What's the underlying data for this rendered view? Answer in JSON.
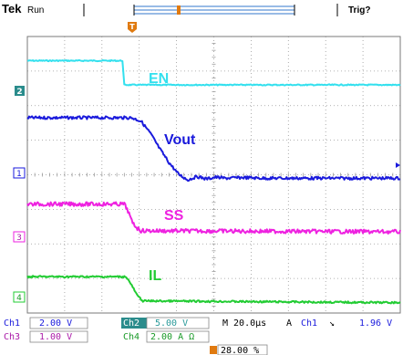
{
  "header": {
    "brand": "Tek",
    "status": "Run",
    "trigger_status": "Trig?"
  },
  "waveforms": {
    "colors": {
      "ch1": "#1a1adc",
      "ch2": "#33e0ee",
      "ch3": "#ee22e0",
      "ch4": "#22cc33",
      "marker": "#e07a10",
      "grid": "#9a9a9a",
      "frame": "#7a7a7a"
    }
  },
  "labels": {
    "en": "EN",
    "vout": "Vout",
    "ss": "SS",
    "il": "IL"
  },
  "channel_markers": {
    "ch1": "1",
    "ch2": "2",
    "ch3": "3",
    "ch4": "4",
    "trigger_marker": "T"
  },
  "readout": {
    "ch1_label": "Ch1",
    "ch1_scale": "2.00 V",
    "ch2_label": "Ch2",
    "ch2_scale": "5.00 V",
    "ch3_label": "Ch3",
    "ch3_scale": "1.00 V",
    "ch4_label": "Ch4",
    "ch4_scale": "2.00 A Ω",
    "timebase": "M 20.0µs",
    "trigger_mode": "A",
    "trigger_source": "Ch1",
    "trigger_slope": "↘",
    "trigger_level": "1.96 V",
    "trigger_position": "28.00 %"
  },
  "chart_data": {
    "type": "line",
    "x_unit": "µs",
    "xlim": [
      -56,
      144
    ],
    "ylim": [
      -4,
      4
    ],
    "series": [
      {
        "name": "EN",
        "color": "#33e0ee",
        "x": [
          -56,
          -5,
          -4,
          144
        ],
        "y": [
          3.3,
          3.3,
          2.6,
          2.6
        ]
      },
      {
        "name": "Vout",
        "color": "#1a1adc",
        "x": [
          -56,
          0,
          5,
          10,
          15,
          20,
          25,
          30,
          35,
          40,
          45,
          50,
          60,
          70,
          144
        ],
        "y": [
          1.65,
          1.65,
          1.55,
          1.2,
          0.75,
          0.35,
          0.02,
          -0.15,
          -0.05,
          -0.12,
          -0.07,
          -0.1,
          -0.08,
          -0.1,
          -0.1
        ]
      },
      {
        "name": "SS",
        "color": "#ee22e0",
        "x": [
          -56,
          -4,
          -2,
          0,
          3,
          5,
          144
        ],
        "y": [
          -0.85,
          -0.85,
          -1.05,
          -1.35,
          -1.55,
          -1.62,
          -1.65
        ]
      },
      {
        "name": "IL",
        "color": "#22cc33",
        "x": [
          -56,
          -3,
          0,
          3,
          6,
          144
        ],
        "y": [
          -2.95,
          -2.95,
          -3.2,
          -3.5,
          -3.65,
          -3.7
        ]
      }
    ]
  }
}
